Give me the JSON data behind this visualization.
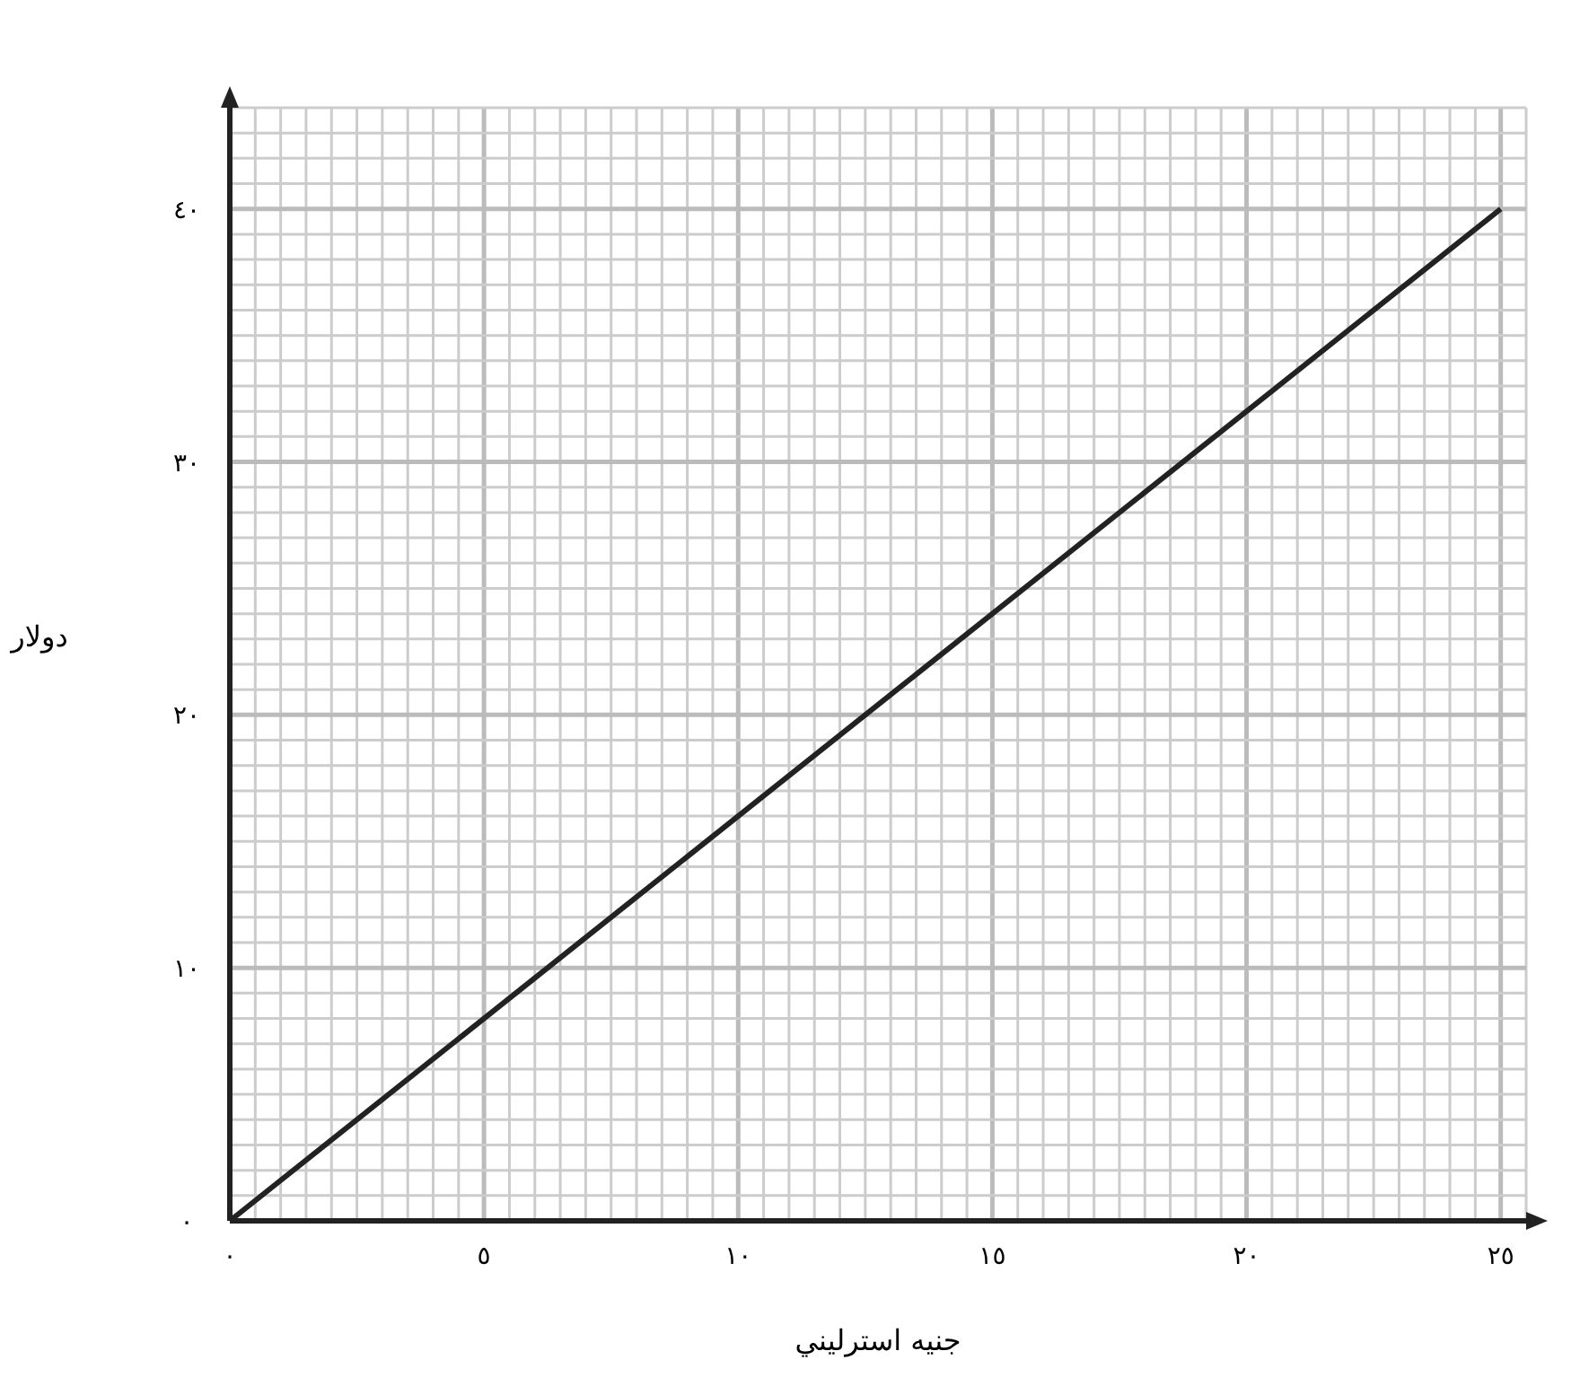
{
  "chart_data": {
    "type": "line",
    "xlabel": "جنيه استرليني",
    "ylabel": "دولار",
    "x": [
      0,
      25
    ],
    "series": [
      {
        "color": "#222222",
        "values": [
          0,
          40
        ]
      }
    ],
    "xlim": [
      0,
      25.5
    ],
    "ylim": [
      0,
      44
    ],
    "xticks": [
      {
        "value": 0,
        "label": "٠"
      },
      {
        "value": 5,
        "label": "٥"
      },
      {
        "value": 10,
        "label": "١٠"
      },
      {
        "value": 15,
        "label": "١٥"
      },
      {
        "value": 20,
        "label": "٢٠"
      },
      {
        "value": 25,
        "label": "٢٥"
      }
    ],
    "yticks": [
      {
        "value": 0,
        "label": "٠"
      },
      {
        "value": 10,
        "label": "١٠"
      },
      {
        "value": 20,
        "label": "٢٠"
      },
      {
        "value": 30,
        "label": "٣٠"
      },
      {
        "value": 40,
        "label": "٤٠"
      }
    ],
    "grid": true,
    "marker": "none",
    "line_style": "solid"
  }
}
